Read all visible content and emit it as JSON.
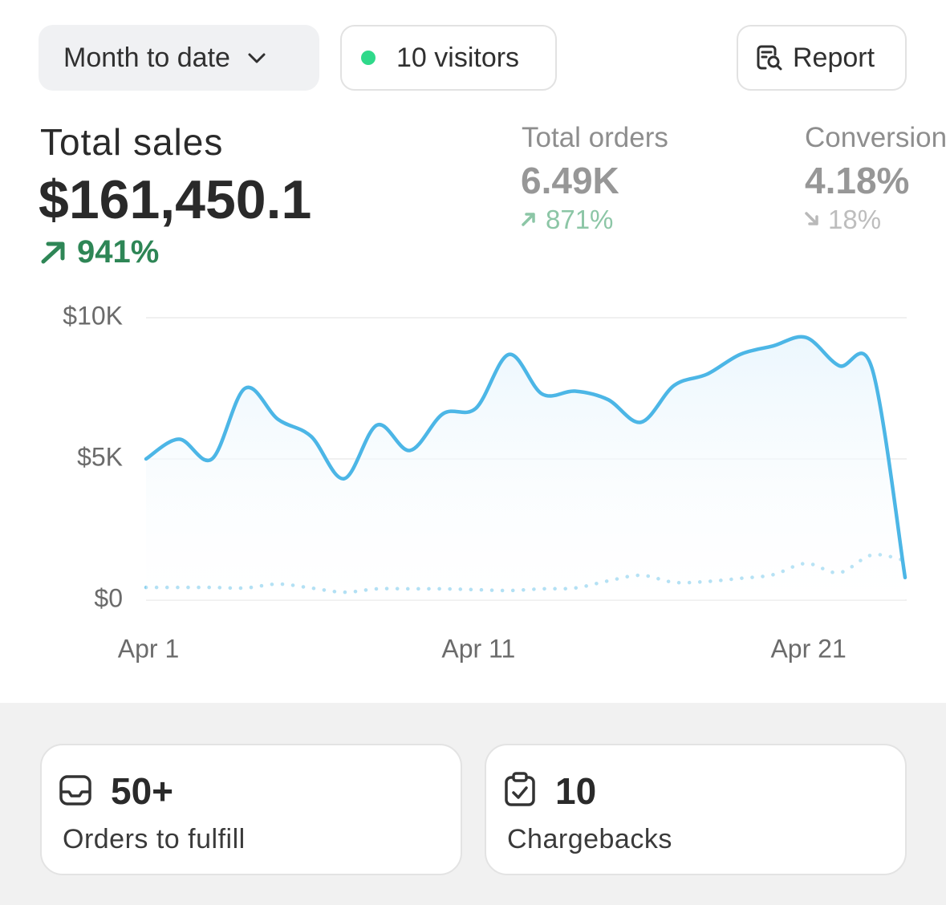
{
  "toolbar": {
    "date_range": "Month to date",
    "visitors": "10 visitors",
    "report": "Report"
  },
  "metrics": [
    {
      "label": "Total sales",
      "value": "$161,450.1",
      "change": "941%"
    },
    {
      "label": "Total orders",
      "value": "6.49K",
      "change": "871%"
    },
    {
      "label": "Conversion",
      "value": "4.18%",
      "change": "18%"
    }
  ],
  "chart_data": {
    "type": "line",
    "categories": [
      "Apr 1",
      null,
      null,
      null,
      null,
      null,
      null,
      null,
      null,
      null,
      "Apr 11",
      null,
      null,
      null,
      null,
      null,
      null,
      null,
      null,
      null,
      "Apr 21",
      null,
      null,
      null
    ],
    "series": [
      {
        "color": "#4cb6e6",
        "style": "solid",
        "values": [
          5000,
          5700,
          5000,
          7500,
          6400,
          5800,
          4300,
          6200,
          5300,
          6600,
          6800,
          8700,
          7300,
          7400,
          7100,
          6300,
          7600,
          8000,
          8700,
          9000,
          9300,
          8300,
          8200,
          800
        ]
      },
      {
        "color": "#8ed2ef",
        "style": "dotted",
        "values": [
          450,
          450,
          450,
          430,
          570,
          430,
          280,
          400,
          400,
          400,
          370,
          340,
          400,
          430,
          680,
          880,
          630,
          660,
          770,
          900,
          1300,
          970,
          1600,
          1400
        ]
      }
    ],
    "ylim": [
      0,
      10000
    ],
    "yticks": [
      {
        "value": 0,
        "label": "$0"
      },
      {
        "value": 5000,
        "label": "$5K"
      },
      {
        "value": 10000,
        "label": "$10K"
      }
    ],
    "grid": true
  },
  "cards": [
    {
      "value": "50+",
      "label": "Orders to fulfill"
    },
    {
      "value": "10",
      "label": "Chargebacks"
    }
  ]
}
